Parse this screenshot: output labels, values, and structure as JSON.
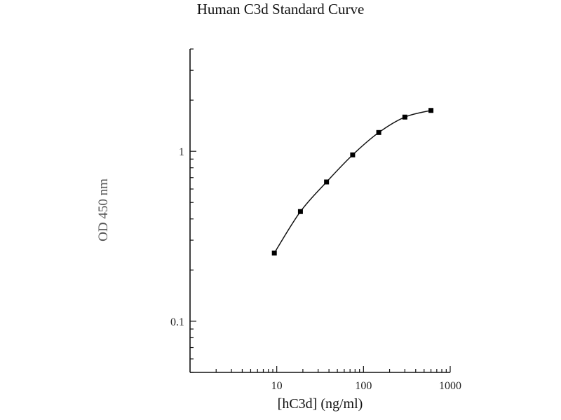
{
  "chart_data": {
    "type": "line",
    "title": "Human C3d Standard Curve",
    "xlabel": "[hC3d] (ng/ml)",
    "ylabel": "OD 450 nm",
    "xscale": "log",
    "yscale": "log",
    "xlim": [
      1,
      1000
    ],
    "ylim": [
      0.05,
      4
    ],
    "x_ticks": [
      10,
      100,
      1000
    ],
    "x_tick_labels": [
      "10",
      "100",
      "1000"
    ],
    "y_ticks": [
      0.1,
      1
    ],
    "y_tick_labels": [
      "0.1",
      "1"
    ],
    "grid": false,
    "marker": "square",
    "series": [
      {
        "x": [
          9.375,
          18.75,
          37.5,
          75,
          150,
          300,
          600
        ],
        "y": [
          0.252,
          0.442,
          0.66,
          0.953,
          1.29,
          1.59,
          1.74
        ]
      }
    ],
    "colors": {
      "line": "#111111",
      "marker": "#000000",
      "axis": "#111111"
    }
  }
}
